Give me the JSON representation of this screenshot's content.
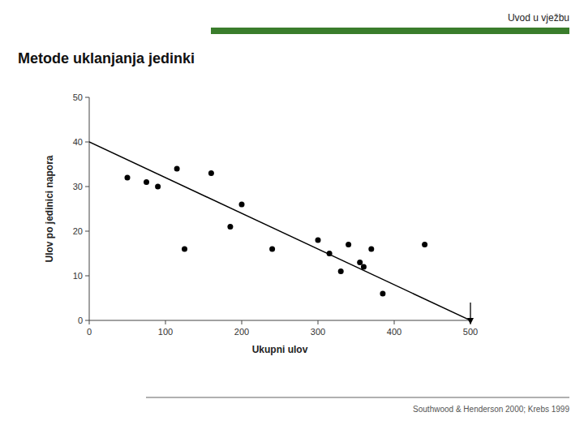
{
  "chart_data": {
    "type": "scatter",
    "title": "Metode uklanjanja jedinki",
    "subtitle": "Uvod u vježbu",
    "x_label": "Ukupni ulov",
    "y_label": "Ulov po jedinici napora",
    "xlim": [
      0,
      500
    ],
    "ylim": [
      0,
      50
    ],
    "xticks": [
      0,
      100,
      200,
      300,
      400,
      500
    ],
    "yticks": [
      0,
      10,
      20,
      30,
      40,
      50
    ],
    "grid": false,
    "series": [
      {
        "type": "scatter",
        "marker": "circle",
        "color": "#000000",
        "x": [
          50,
          75,
          90,
          115,
          125,
          160,
          185,
          200,
          240,
          300,
          315,
          330,
          340,
          355,
          360,
          370,
          385,
          440
        ],
        "values": [
          32,
          31,
          30,
          34,
          16,
          33,
          21,
          26,
          16,
          18,
          15,
          11,
          17,
          13,
          12,
          16,
          6,
          17
        ]
      },
      {
        "type": "line",
        "line_style": "solid",
        "color": "#000000",
        "x": [
          0,
          500
        ],
        "values": [
          40,
          0
        ]
      }
    ],
    "annotations": [
      {
        "text": "Southwood & Henderson 2000; Krebs 1999"
      },
      {
        "marker": "arrow",
        "x": 500,
        "y": 0
      }
    ]
  }
}
